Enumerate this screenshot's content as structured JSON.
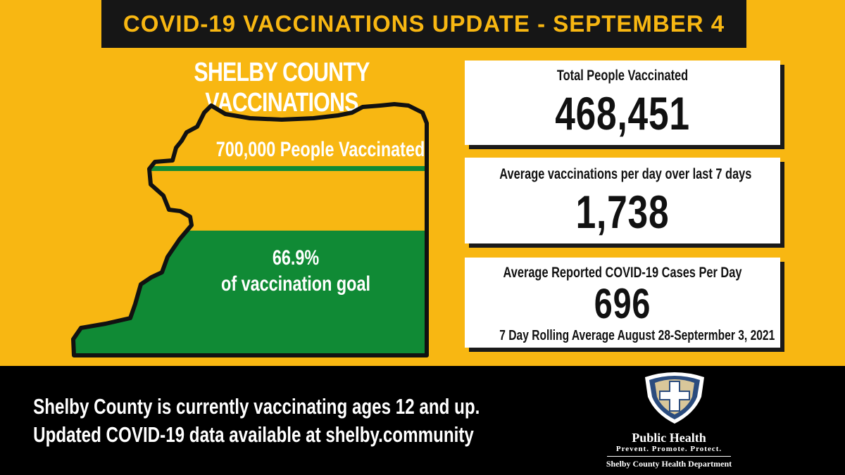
{
  "header": {
    "title": "COVID-19 VACCINATIONS UPDATE - SEPTEMBER 4"
  },
  "map": {
    "title": "SHELBY COUNTY VACCINATIONS",
    "goal_label": "700,000 People Vaccinated",
    "percent_value": "66.9%",
    "percent_caption": "of vaccination goal",
    "progress_fraction": 0.669,
    "fill_color": "#108a35",
    "background_color": "#f8b712"
  },
  "stats": [
    {
      "label": "Total People Vaccinated",
      "value": "468,451"
    },
    {
      "label": "Average vaccinations per day over last 7 days",
      "value": "1,738"
    },
    {
      "label": "Average Reported COVID-19 Cases Per Day",
      "value": "696",
      "note": "7 Day Rolling Average August 28-Septermber 3, 2021"
    }
  ],
  "footer": {
    "line1": "Shelby County is currently vaccinating ages 12 and up.",
    "line2": "Updated COVID-19 data available at shelby.community"
  },
  "logo": {
    "icon": "shield-cross-icon",
    "name": "Public Health",
    "tagline": "Prevent. Promote. Protect.",
    "department": "Shelby County Health Department"
  }
}
